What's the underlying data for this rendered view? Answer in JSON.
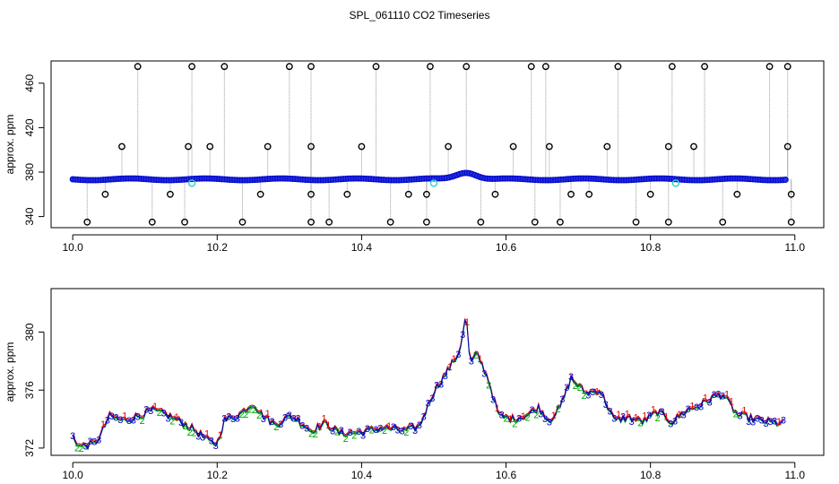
{
  "title": "SPL_061110  CO2 Timeseries",
  "colors": {
    "series1": "#dd0000",
    "series2": "#00aa00",
    "series3": "#0000cc",
    "outlier": "#000000",
    "special": "#33cccc",
    "drop": "#999999"
  },
  "chart_data": [
    {
      "type": "scatter",
      "ylabel": "approx. ppm",
      "xlim": [
        9.97,
        11.04
      ],
      "ylim": [
        330,
        480
      ],
      "xticks": [
        10.0,
        10.2,
        10.4,
        10.6,
        10.8,
        11.0
      ],
      "xtick_labels": [
        "10.0",
        "10.2",
        "10.4",
        "10.6",
        "10.8",
        "11.0"
      ],
      "yticks": [
        340,
        380,
        420,
        460
      ],
      "ytick_labels": [
        "340",
        "380",
        "420",
        "460"
      ],
      "series": [
        {
          "name": "baseline",
          "x_start": 10.0,
          "x_end": 10.99,
          "baseline_ppm": 373.5,
          "bump": {
            "x": 10.545,
            "peak": 380
          }
        },
        {
          "name": "outliers_high",
          "x": [
            10.09,
            10.165,
            10.21,
            10.3,
            10.33,
            10.42,
            10.495,
            10.545,
            10.635,
            10.655,
            10.755,
            10.83,
            10.875,
            10.965,
            10.99
          ],
          "y": [
            475,
            475,
            475,
            475,
            475,
            475,
            475,
            475,
            475,
            475,
            475,
            475,
            475,
            475,
            475
          ]
        },
        {
          "name": "outliers_mid",
          "x": [
            10.068,
            10.16,
            10.19,
            10.27,
            10.33,
            10.4,
            10.52,
            10.61,
            10.66,
            10.74,
            10.825,
            10.86,
            10.99
          ],
          "y": [
            403,
            403,
            403,
            403,
            403,
            403,
            403,
            403,
            403,
            403,
            403,
            403,
            403
          ]
        },
        {
          "name": "outliers_low",
          "x": [
            10.02,
            10.11,
            10.155,
            10.235,
            10.33,
            10.355,
            10.44,
            10.49,
            10.565,
            10.64,
            10.675,
            10.78,
            10.825,
            10.9,
            10.995
          ],
          "y": [
            335,
            335,
            335,
            335,
            335,
            335,
            335,
            335,
            335,
            335,
            335,
            335,
            335,
            335,
            335
          ]
        },
        {
          "name": "outliers_360",
          "x": [
            10.045,
            10.135,
            10.26,
            10.33,
            10.38,
            10.465,
            10.49,
            10.585,
            10.69,
            10.715,
            10.8,
            10.92,
            10.995
          ],
          "y": [
            360,
            360,
            360,
            360,
            360,
            360,
            360,
            360,
            360,
            360,
            360,
            360,
            360
          ]
        },
        {
          "name": "flagged",
          "x": [
            10.165,
            10.5,
            10.835
          ],
          "y": [
            370,
            370,
            370
          ]
        }
      ]
    },
    {
      "type": "line",
      "ylabel": "approx. ppm",
      "xlim": [
        9.97,
        11.04
      ],
      "ylim": [
        371.5,
        383
      ],
      "xticks": [
        10.0,
        10.2,
        10.4,
        10.6,
        10.8,
        11.0
      ],
      "xtick_labels": [
        "10.0",
        "10.2",
        "10.4",
        "10.6",
        "10.8",
        "11.0"
      ],
      "yticks": [
        372,
        376,
        380
      ],
      "ytick_labels": [
        "372",
        "376",
        "380"
      ],
      "markers": [
        "1",
        "2",
        "3"
      ],
      "series": [
        {
          "name": "1",
          "color": "#dd0000"
        },
        {
          "name": "2",
          "color": "#00aa00"
        },
        {
          "name": "3",
          "color": "#0000cc"
        }
      ],
      "profile": {
        "x": [
          10.0,
          10.01,
          10.03,
          10.04,
          10.05,
          10.07,
          10.09,
          10.11,
          10.13,
          10.15,
          10.17,
          10.19,
          10.2,
          10.21,
          10.23,
          10.25,
          10.26,
          10.28,
          10.3,
          10.31,
          10.33,
          10.35,
          10.37,
          10.4,
          10.43,
          10.46,
          10.48,
          10.5,
          10.52,
          10.535,
          10.545,
          10.55,
          10.56,
          10.575,
          10.59,
          10.61,
          10.63,
          10.645,
          10.66,
          10.675,
          10.69,
          10.71,
          10.73,
          10.75,
          10.77,
          10.79,
          10.81,
          10.83,
          10.85,
          10.87,
          10.89,
          10.9,
          10.92,
          10.95,
          10.98
        ],
        "y": [
          372.8,
          372.1,
          372.3,
          373.0,
          374.2,
          373.9,
          374.2,
          374.6,
          374.3,
          373.8,
          373.2,
          372.4,
          372.3,
          373.9,
          374.3,
          375.1,
          374.4,
          373.6,
          374.2,
          374.0,
          373.2,
          373.7,
          373.0,
          373.1,
          373.4,
          373.2,
          373.5,
          375.9,
          377.4,
          378.6,
          381.2,
          377.8,
          378.5,
          376.8,
          374.2,
          374.0,
          374.3,
          374.8,
          373.9,
          374.8,
          376.8,
          375.8,
          376.0,
          373.9,
          374.1,
          373.8,
          374.5,
          373.8,
          374.6,
          375.0,
          375.6,
          375.7,
          374.3,
          373.9,
          373.7
        ]
      }
    }
  ]
}
